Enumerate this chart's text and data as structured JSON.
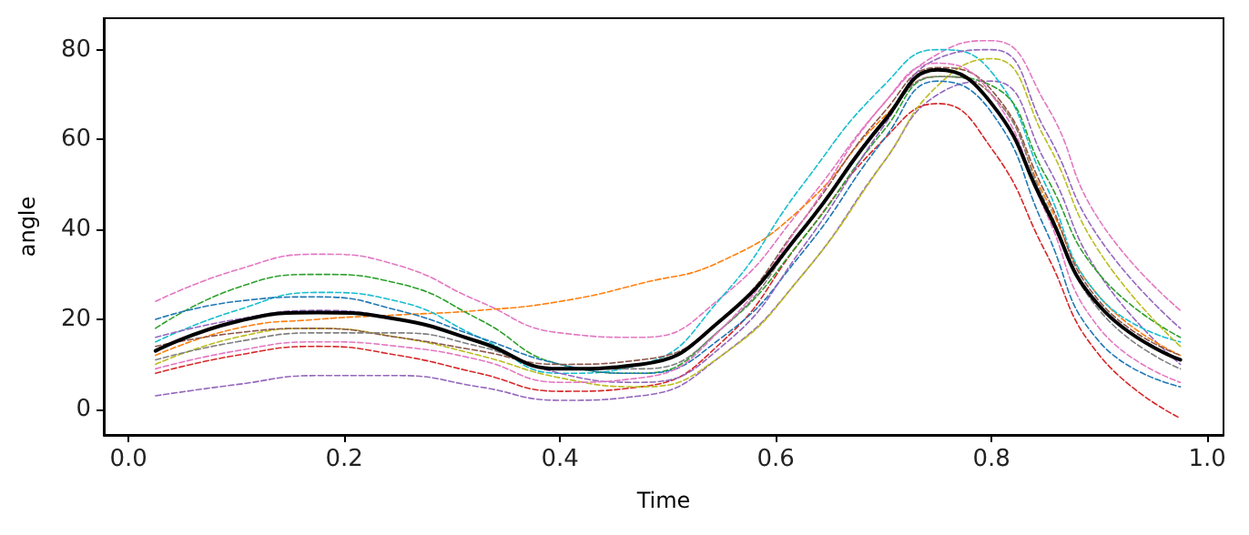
{
  "chart_data": {
    "type": "line",
    "xlabel": "Time",
    "ylabel": "angle",
    "x": [
      0.025,
      0.1,
      0.175,
      0.25,
      0.325,
      0.4,
      0.475,
      0.55,
      0.625,
      0.7,
      0.75,
      0.8,
      0.85,
      0.9,
      0.975
    ],
    "xlim": [
      -0.023,
      1.015
    ],
    "xticks": [
      {
        "value": 0,
        "label": "0.0"
      },
      0.2,
      0.4,
      0.6,
      0.8,
      {
        "value": 1,
        "label": "1.0"
      }
    ],
    "ylim": [
      -5.7,
      87
    ],
    "yticks": [
      0,
      20,
      40,
      60,
      80
    ],
    "grid": false,
    "marker": "none",
    "series": [
      {
        "color": "#e377c2",
        "line_style": "dashed",
        "values": [
          24,
          31,
          34.5,
          32,
          24,
          17,
          16,
          25,
          45,
          68,
          79,
          82,
          68,
          42,
          22
        ]
      },
      {
        "color": "#9467bd",
        "line_style": "dashed",
        "values": [
          3,
          5.5,
          7.5,
          7.5,
          5,
          2,
          3,
          12,
          30,
          55,
          70,
          73,
          55,
          30,
          10
        ]
      },
      {
        "color": "#d62728",
        "line_style": "dashed",
        "values": [
          8,
          12,
          14,
          12,
          8,
          4,
          5,
          15,
          38,
          60,
          68,
          58,
          35,
          12,
          -2
        ]
      },
      {
        "color": "#ff7f0e",
        "line_style": "dashed",
        "values": [
          12,
          18,
          20,
          21,
          22,
          24,
          28,
          33,
          45,
          65,
          74,
          70,
          47,
          25,
          12
        ]
      },
      {
        "color": "#17becf",
        "line_style": "dashed",
        "values": [
          15,
          22,
          26,
          24,
          16,
          8,
          10,
          25,
          50,
          72,
          80,
          75,
          50,
          25,
          15
        ]
      },
      {
        "color": "#2ca02c",
        "line_style": "dashed",
        "values": [
          18,
          27,
          30,
          28,
          20,
          10,
          8,
          18,
          38,
          62,
          74,
          72,
          52,
          30,
          16
        ]
      },
      {
        "color": "#bcbd22",
        "line_style": "dashed",
        "values": [
          10,
          16,
          18,
          16,
          12,
          7,
          5,
          12,
          30,
          55,
          72,
          78,
          60,
          35,
          14
        ]
      },
      {
        "color": "#1f77b4",
        "line_style": "dashed",
        "values": [
          20,
          24,
          25,
          22,
          16,
          10,
          8,
          16,
          35,
          60,
          73,
          66,
          40,
          15,
          5
        ]
      },
      {
        "color": "#8c564b",
        "line_style": "dashed",
        "values": [
          14,
          17,
          18,
          16,
          13,
          10,
          11,
          20,
          42,
          66,
          76,
          71,
          48,
          24,
          12
        ]
      },
      {
        "color": "#7f7f7f",
        "line_style": "dashed",
        "values": [
          11,
          15,
          17,
          17,
          14,
          9,
          9,
          18,
          40,
          64,
          74,
          70,
          46,
          22,
          9
        ]
      },
      {
        "color": "#9467bd",
        "line_style": "dashed",
        "values": [
          16,
          20,
          22,
          20,
          15,
          8,
          6,
          14,
          36,
          63,
          78,
          80,
          62,
          38,
          18
        ]
      },
      {
        "color": "#e377c2",
        "line_style": "dashed",
        "values": [
          9,
          13,
          15,
          14,
          11,
          6,
          7,
          18,
          42,
          68,
          77,
          70,
          44,
          18,
          6
        ]
      },
      {
        "color": "#000000",
        "line_style": "solid",
        "values": [
          13,
          19.5,
          21.5,
          20,
          15,
          9,
          10,
          20,
          40,
          64,
          75.5,
          68,
          45,
          23,
          11
        ]
      }
    ]
  }
}
